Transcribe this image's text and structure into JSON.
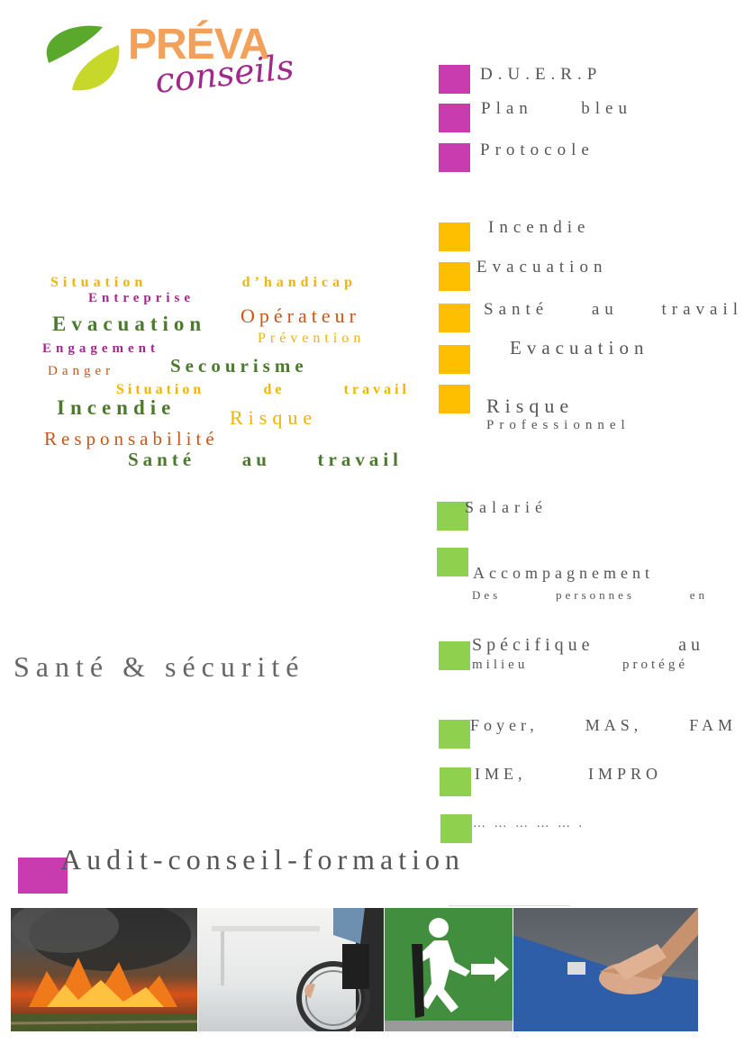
{
  "logo": {
    "brand": "PRÉVA",
    "sub": "conseils"
  },
  "colors": {
    "magenta": "#c83caf",
    "yellow": "#fdbf00",
    "green": "#8fd14f",
    "text": "#555555"
  },
  "magenta_items": [
    "D.U.E.R.P",
    "Plan bleu",
    "Protocole"
  ],
  "yellow_items": {
    "incendie": "Incendie",
    "evacuation1": "Evacuation",
    "sante": "Santé au travail",
    "evacuation2": "Evacuation",
    "risque": "Risque",
    "risque_sub": "Professionnel"
  },
  "green_items": {
    "salarie": "Salarié",
    "accompagnement": "Accompagnement",
    "accompagnement_sub": "Des personnes en",
    "specifique": "Spécifique au",
    "specifique_sub": "milieu protégé",
    "foyer": "Foyer, MAS, FAM",
    "ime": "IME, IMPRO",
    "etc": "… … … … … ."
  },
  "word_cloud": {
    "situation_handicap": "Situation d’handicap",
    "entreprise": "Entreprise",
    "evacuation": "Evacuation",
    "operateur": "Opérateur",
    "prevention": "Prévention",
    "engagement": "Engagement",
    "danger": "Danger",
    "secourisme": "Secourisme",
    "situation_travail": "Situation de travail",
    "incendie": "Incendie",
    "risque": "Risque",
    "responsabilite": "Responsabilité",
    "sante": "Santé au travail"
  },
  "headline": "Santé & sécurité",
  "footer_title": "Audit-conseil-formation",
  "photos": [
    "fire-photo",
    "wheelchair-photo",
    "exit-sign-photo",
    "cpr-photo"
  ]
}
